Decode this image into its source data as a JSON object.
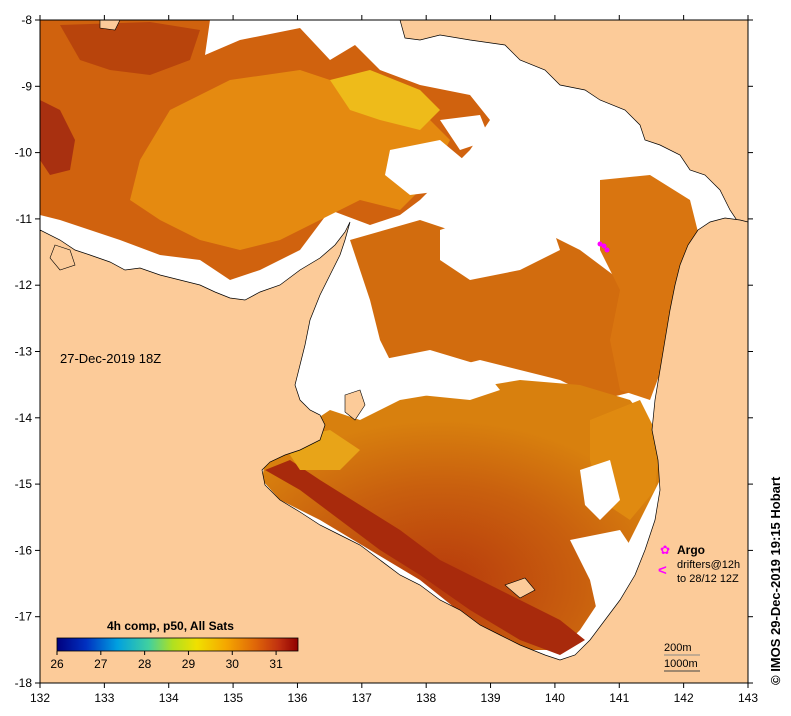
{
  "map": {
    "timestamp_label": "27-Dec-2019 18Z",
    "credit": "© IMOS 29-Dec-2019 19:15 Hobart",
    "x_ticks": [
      "132",
      "133",
      "134",
      "135",
      "136",
      "137",
      "138",
      "139",
      "140",
      "141",
      "142",
      "143"
    ],
    "y_ticks": [
      "-8",
      "-9",
      "-10",
      "-11",
      "-12",
      "-13",
      "-14",
      "-15",
      "-16",
      "-17",
      "-18"
    ]
  },
  "colorbar": {
    "title": "4h comp, p50, All Sats",
    "ticks": [
      "26",
      "27",
      "28",
      "29",
      "30",
      "31"
    ],
    "range": [
      26,
      31.5
    ]
  },
  "legend": {
    "argo_label": "Argo",
    "drifters_label": "drifters@12h",
    "drifters_sub": "to 28/12 12Z",
    "contour_200": "200m",
    "contour_1000": "1000m"
  },
  "colors": {
    "land": "#fccb99",
    "cloud": "#ffffff",
    "sst_warm": "#c65a10",
    "sst_hot": "#a82a0c",
    "sst_mid": "#e8900c",
    "sst_cool": "#eec21c",
    "argo": "#ff00ff"
  }
}
